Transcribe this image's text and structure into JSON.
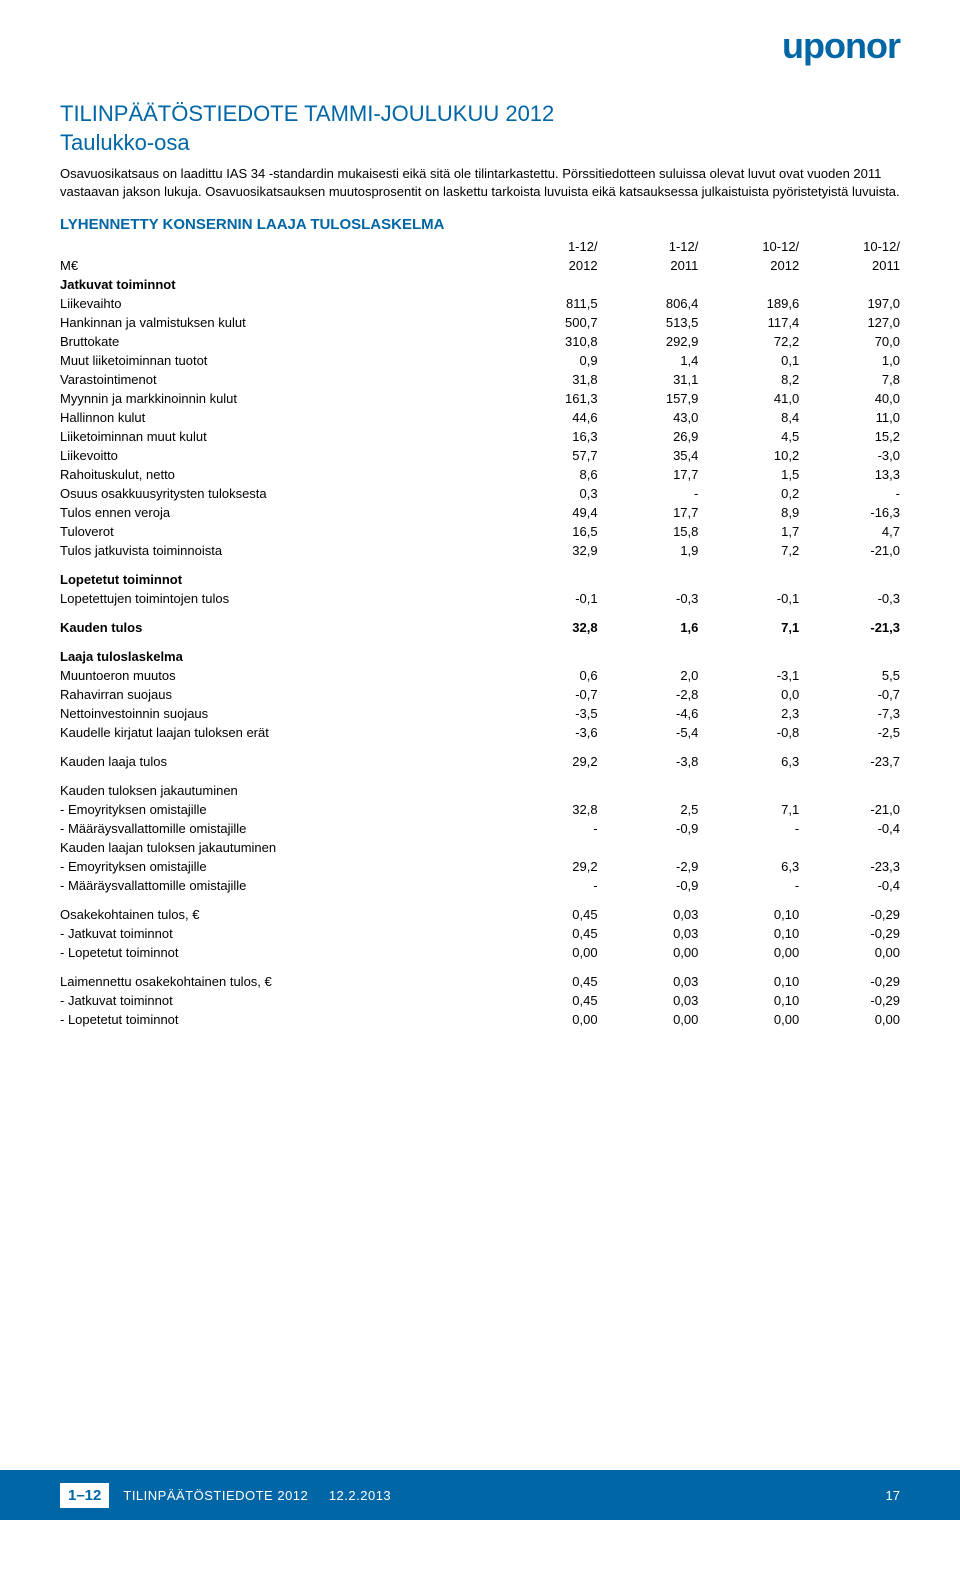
{
  "brand": {
    "logo_text": "uponor",
    "color": "#0066a6"
  },
  "header": {
    "title_main": "TILINPÄÄTÖSTIEDOTE TAMMI-JOULUKUU 2012",
    "title_sub": "Taulukko-osa",
    "intro": "Osavuosikatsaus on laadittu IAS 34 -standardin mukaisesti eikä sitä ole tilintarkastettu. Pörssitiedotteen suluissa olevat luvut ovat vuoden 2011 vastaavan jakson lukuja. Osavuosikatsauksen muutosprosentit on laskettu tarkoista luvuista eikä katsauksessa julkaistuista pyöristetyistä luvuista."
  },
  "section_heading": "LYHENNETTY KONSERNIN LAAJA TULOSLASKELMA",
  "columns": {
    "unit_label": "M€",
    "c1_top": "1-12/",
    "c1_bot": "2012",
    "c2_top": "1-12/",
    "c2_bot": "2011",
    "c3_top": "10-12/",
    "c3_bot": "2012",
    "c4_top": "10-12/",
    "c4_bot": "2011"
  },
  "rows": {
    "r0": {
      "label": "Jatkuvat toiminnot",
      "bold": true,
      "gap": false,
      "v": [
        "",
        "",
        "",
        ""
      ]
    },
    "r1": {
      "label": "Liikevaihto",
      "v": [
        "811,5",
        "806,4",
        "189,6",
        "197,0"
      ]
    },
    "r2": {
      "label": "Hankinnan ja valmistuksen kulut",
      "v": [
        "500,7",
        "513,5",
        "117,4",
        "127,0"
      ]
    },
    "r3": {
      "label": "Bruttokate",
      "v": [
        "310,8",
        "292,9",
        "72,2",
        "70,0"
      ]
    },
    "r4": {
      "label": "Muut liiketoiminnan tuotot",
      "v": [
        "0,9",
        "1,4",
        "0,1",
        "1,0"
      ]
    },
    "r5": {
      "label": "Varastointimenot",
      "v": [
        "31,8",
        "31,1",
        "8,2",
        "7,8"
      ]
    },
    "r6": {
      "label": "Myynnin ja markkinoinnin kulut",
      "v": [
        "161,3",
        "157,9",
        "41,0",
        "40,0"
      ]
    },
    "r7": {
      "label": "Hallinnon kulut",
      "v": [
        "44,6",
        "43,0",
        "8,4",
        "11,0"
      ]
    },
    "r8": {
      "label": "Liiketoiminnan muut kulut",
      "v": [
        "16,3",
        "26,9",
        "4,5",
        "15,2"
      ]
    },
    "r9": {
      "label": "Liikevoitto",
      "v": [
        "57,7",
        "35,4",
        "10,2",
        "-3,0"
      ]
    },
    "r10": {
      "label": "Rahoituskulut, netto",
      "v": [
        "8,6",
        "17,7",
        "1,5",
        "13,3"
      ]
    },
    "r11": {
      "label": "Osuus osakkuusyritysten tuloksesta",
      "v": [
        "0,3",
        "-",
        "0,2",
        "-"
      ]
    },
    "r12": {
      "label": "Tulos ennen veroja",
      "v": [
        "49,4",
        "17,7",
        "8,9",
        "-16,3"
      ]
    },
    "r13": {
      "label": "Tuloverot",
      "v": [
        "16,5",
        "15,8",
        "1,7",
        "4,7"
      ]
    },
    "r14": {
      "label": "Tulos jatkuvista toiminnoista",
      "v": [
        "32,9",
        "1,9",
        "7,2",
        "-21,0"
      ]
    },
    "r15": {
      "label": "Lopetetut toiminnot",
      "bold": true,
      "gap": true,
      "v": [
        "",
        "",
        "",
        ""
      ]
    },
    "r16": {
      "label": "Lopetettujen toimintojen tulos",
      "v": [
        "-0,1",
        "-0,3",
        "-0,1",
        "-0,3"
      ]
    },
    "r17": {
      "label": "Kauden tulos",
      "bold": true,
      "gap": true,
      "v": [
        "32,8",
        "1,6",
        "7,1",
        "-21,3"
      ]
    },
    "r18": {
      "label": "Laaja tuloslaskelma",
      "bold": true,
      "gap": true,
      "v": [
        "",
        "",
        "",
        ""
      ]
    },
    "r19": {
      "label": "Muuntoeron muutos",
      "v": [
        "0,6",
        "2,0",
        "-3,1",
        "5,5"
      ]
    },
    "r20": {
      "label": "Rahavirran suojaus",
      "v": [
        "-0,7",
        "-2,8",
        "0,0",
        "-0,7"
      ]
    },
    "r21": {
      "label": "Nettoinvestoinnin suojaus",
      "v": [
        "-3,5",
        "-4,6",
        "2,3",
        "-7,3"
      ]
    },
    "r22": {
      "label": "Kaudelle kirjatut laajan tuloksen erät",
      "v": [
        "-3,6",
        "-5,4",
        "-0,8",
        "-2,5"
      ]
    },
    "r23": {
      "label": "Kauden laaja tulos",
      "gap": true,
      "v": [
        "29,2",
        "-3,8",
        "6,3",
        "-23,7"
      ]
    },
    "r24": {
      "label": "Kauden tuloksen jakautuminen",
      "gap": true,
      "v": [
        "",
        "",
        "",
        ""
      ]
    },
    "r25": {
      "label": "- Emoyrityksen omistajille",
      "v": [
        "32,8",
        "2,5",
        "7,1",
        "-21,0"
      ]
    },
    "r26": {
      "label": "- Määräysvallattomille omistajille",
      "v": [
        "-",
        "-0,9",
        "-",
        "-0,4"
      ]
    },
    "r27": {
      "label": "Kauden laajan tuloksen jakautuminen",
      "v": [
        "",
        "",
        "",
        ""
      ]
    },
    "r28": {
      "label": "- Emoyrityksen omistajille",
      "v": [
        "29,2",
        "-2,9",
        "6,3",
        "-23,3"
      ]
    },
    "r29": {
      "label": "- Määräysvallattomille omistajille",
      "v": [
        "-",
        "-0,9",
        "-",
        "-0,4"
      ]
    },
    "r30": {
      "label": "Osakekohtainen tulos, €",
      "gap": true,
      "v": [
        "0,45",
        "0,03",
        "0,10",
        "-0,29"
      ]
    },
    "r31": {
      "label": "- Jatkuvat toiminnot",
      "v": [
        "0,45",
        "0,03",
        "0,10",
        "-0,29"
      ]
    },
    "r32": {
      "label": "- Lopetetut toiminnot",
      "v": [
        "0,00",
        "0,00",
        "0,00",
        "0,00"
      ]
    },
    "r33": {
      "label": "Laimennettu osakekohtainen tulos, €",
      "gap": true,
      "v": [
        "0,45",
        "0,03",
        "0,10",
        "-0,29"
      ]
    },
    "r34": {
      "label": "- Jatkuvat toiminnot",
      "v": [
        "0,45",
        "0,03",
        "0,10",
        "-0,29"
      ]
    },
    "r35": {
      "label": "- Lopetetut toiminnot",
      "v": [
        "0,00",
        "0,00",
        "0,00",
        "0,00"
      ]
    }
  },
  "footer": {
    "badge": "1–12",
    "text": "TILINPÄÄTÖSTIEDOTE 2012",
    "date": "12.2.2013",
    "page": "17"
  }
}
